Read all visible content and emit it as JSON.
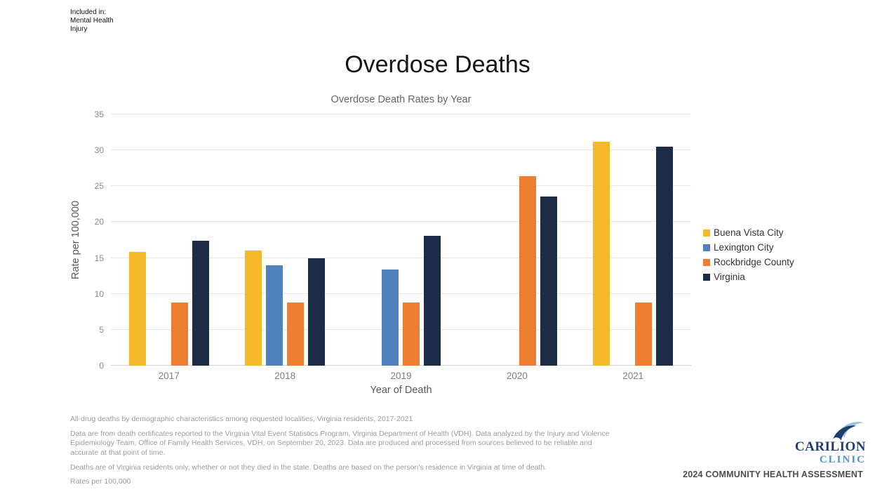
{
  "included_in": {
    "lines": [
      "Included in:",
      "Mental Health",
      "Injury"
    ]
  },
  "page_title": "Overdose Deaths",
  "chart_data": {
    "type": "bar",
    "title": "Overdose Death Rates by Year",
    "xlabel": "Year of Death",
    "ylabel": "Rate per 100,000",
    "ylim": [
      0,
      35
    ],
    "yticks": [
      0,
      5,
      10,
      15,
      20,
      25,
      30,
      35
    ],
    "grid": true,
    "legend_position": "right",
    "categories": [
      "2017",
      "2018",
      "2019",
      "2020",
      "2021"
    ],
    "series": [
      {
        "name": "Buena Vista City",
        "color": "#F5B828",
        "values": [
          15.8,
          16.0,
          null,
          null,
          31.2
        ]
      },
      {
        "name": "Lexington City",
        "color": "#5282BE",
        "values": [
          null,
          14.0,
          13.4,
          null,
          null
        ]
      },
      {
        "name": "Rockbridge County",
        "color": "#EC7D31",
        "values": [
          8.8,
          8.8,
          8.8,
          26.4,
          8.8
        ]
      },
      {
        "name": "Virginia",
        "color": "#1C2B47",
        "values": [
          17.4,
          15.0,
          18.1,
          23.6,
          30.5
        ]
      }
    ]
  },
  "footnotes": [
    "All-drug deaths by demographic characteristics among requested localities, Virginia residents, 2017-2021",
    "Data are from death certificates reported to the Virginia Vital Event Statistics Program, Virginia Department of Health (VDH). Data analyzed by the Injury and Violence Epidemiology Team, Office of Family Health Services, VDH, on September 20, 2023. Data are produced and processed from sources believed to be reliable and accurate at that point of time.",
    "Deaths are of Virginia residents only, whether or not they died in the state. Deaths are based on the person's residence in Virginia at time of death.",
    "Rates per 100,000"
  ],
  "footer": {
    "assessment_label": "2024 COMMUNITY HEALTH ASSESSMENT",
    "logo": {
      "line1": "CARILION",
      "line2": "CLINIC"
    }
  }
}
